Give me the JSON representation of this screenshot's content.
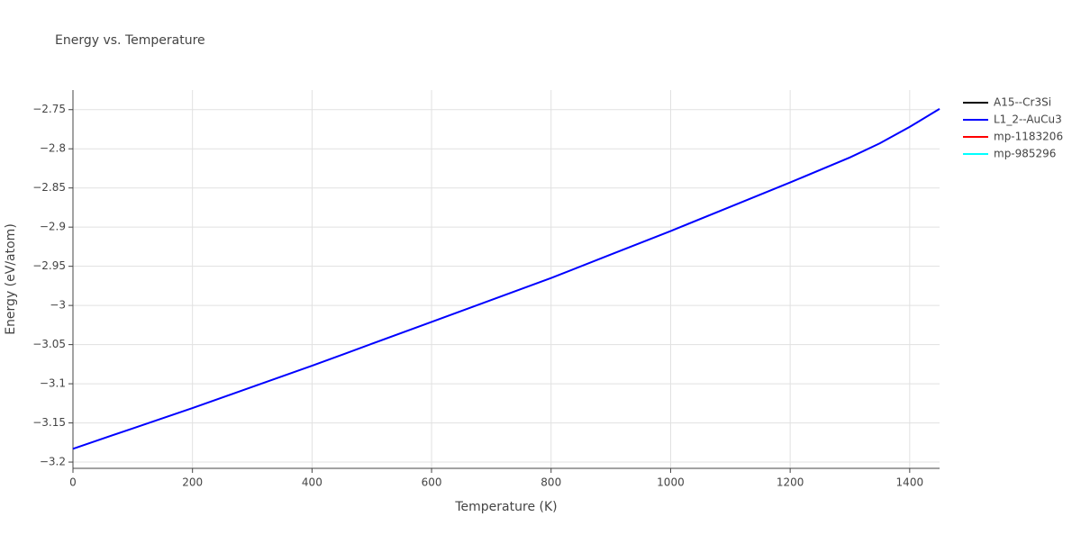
{
  "chart_data": {
    "type": "line",
    "title": "Energy vs. Temperature",
    "x_label": "Temperature (K)",
    "y_label": "Energy (eV/atom)",
    "x": [
      0,
      100,
      200,
      300,
      400,
      500,
      600,
      700,
      800,
      900,
      1000,
      1100,
      1200,
      1300,
      1350,
      1400,
      1450
    ],
    "series": [
      {
        "name": "A15--Cr3Si",
        "color": "#000000",
        "values": [
          null,
          null,
          null,
          null,
          null,
          null,
          null,
          null,
          null,
          null,
          null,
          null,
          null,
          null,
          null,
          null,
          null
        ]
      },
      {
        "name": "L1_2--AuCu3",
        "color": "#0000ff",
        "values": [
          -3.183,
          -3.157,
          -3.131,
          -3.104,
          -3.077,
          -3.049,
          -3.021,
          -2.993,
          -2.965,
          -2.935,
          -2.905,
          -2.874,
          -2.843,
          -2.811,
          -2.793,
          -2.772,
          -2.749
        ]
      },
      {
        "name": "mp-1183206",
        "color": "#ff0000",
        "values": [
          null,
          null,
          null,
          null,
          null,
          null,
          null,
          null,
          null,
          null,
          null,
          null,
          null,
          null,
          null,
          null,
          null
        ]
      },
      {
        "name": "mp-985296",
        "color": "#00ffff",
        "values": [
          null,
          null,
          null,
          null,
          null,
          null,
          null,
          null,
          null,
          null,
          null,
          null,
          null,
          null,
          null,
          null,
          null
        ]
      }
    ],
    "xlim": [
      0,
      1450
    ],
    "xticks": [
      0,
      200,
      400,
      600,
      800,
      1000,
      1200,
      1400
    ],
    "ylim": [
      -3.208,
      -2.725
    ],
    "yticks": [
      {
        "value": -3.2,
        "label": "−3.2"
      },
      {
        "value": -3.15,
        "label": "−3.15"
      },
      {
        "value": -3.1,
        "label": "−3.1"
      },
      {
        "value": -3.05,
        "label": "−3.05"
      },
      {
        "value": -3,
        "label": "−3"
      },
      {
        "value": -2.95,
        "label": "−2.95"
      },
      {
        "value": -2.9,
        "label": "−2.9"
      },
      {
        "value": -2.85,
        "label": "−2.85"
      },
      {
        "value": -2.8,
        "label": "−2.8"
      },
      {
        "value": -2.75,
        "label": "−2.75"
      }
    ],
    "grid": true,
    "legend": "right"
  }
}
